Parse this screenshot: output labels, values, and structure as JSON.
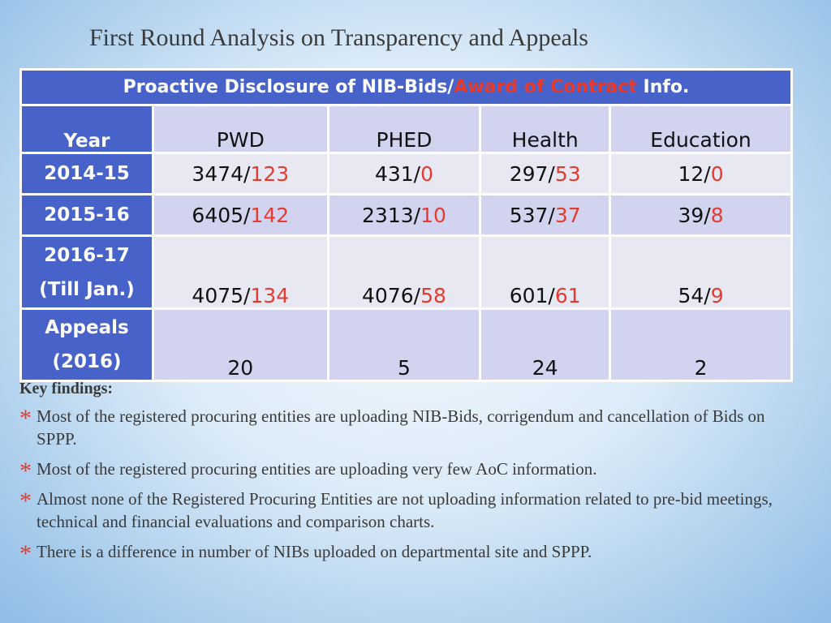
{
  "slide": {
    "title": "First Round Analysis on Transparency and Appeals"
  },
  "table": {
    "banner": {
      "part1": "Proactive Disclosure of NIB-Bids/",
      "part2": "Award of Contract",
      "part3": " Info."
    },
    "headers": [
      "Year",
      "PWD",
      "PHED",
      "Health",
      "Education"
    ],
    "rows": [
      {
        "label": [
          "2014-15"
        ],
        "cells": [
          {
            "nib": "3474",
            "aoc": "123"
          },
          {
            "nib": "431",
            "aoc": "0"
          },
          {
            "nib": "297",
            "aoc": "53"
          },
          {
            "nib": "12",
            "aoc": "0"
          }
        ]
      },
      {
        "label": [
          "2015-16"
        ],
        "cells": [
          {
            "nib": "6405",
            "aoc": "142"
          },
          {
            "nib": "2313",
            "aoc": "10"
          },
          {
            "nib": "537",
            "aoc": "37"
          },
          {
            "nib": "39",
            "aoc": "8"
          }
        ]
      },
      {
        "label": [
          "2016-17",
          "(Till Jan.)"
        ],
        "cells": [
          {
            "nib": "4075",
            "aoc": "134"
          },
          {
            "nib": "4076",
            "aoc": "58"
          },
          {
            "nib": "601",
            "aoc": "61"
          },
          {
            "nib": "54",
            "aoc": "9"
          }
        ]
      },
      {
        "label": [
          "Appeals",
          "(2016)"
        ],
        "cells": [
          "20",
          "5",
          "24",
          "2"
        ]
      }
    ]
  },
  "findings": {
    "title": "Key findings:",
    "bullet_symbol": "*",
    "items": [
      "Most of the registered procuring entities are uploading NIB-Bids, corrigendum and cancellation of Bids on SPPP.",
      "Most of the registered procuring entities are uploading very few AoC information.",
      "Almost none of the Registered Procuring Entities are not uploading information related to pre-bid meetings, technical and financial evaluations and comparison charts.",
      "There is a difference in number of NIBs uploaded on departmental site and SPPP."
    ]
  },
  "colors": {
    "header_blue": "#4763c9",
    "accent_red": "#e53b2e",
    "row_light_purple": "#d2d3ee",
    "row_light_gray": "#e8e8f3"
  }
}
